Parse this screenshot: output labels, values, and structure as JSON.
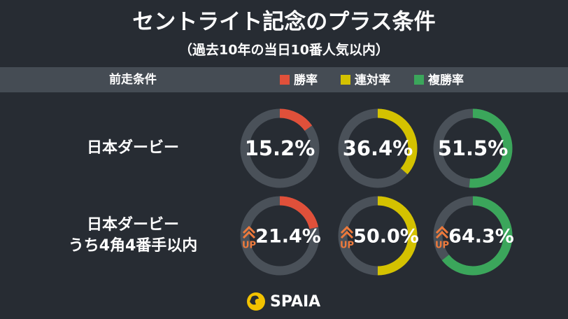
{
  "chart_data": {
    "type": "donut-grid",
    "title": "セントライト記念のプラス条件",
    "subtitle": "（過去10年の当日10番人気以内）",
    "category_header": "前走条件",
    "categories": [
      [
        "日本ダービー"
      ],
      [
        "日本ダービー",
        "うち4角4番手以内"
      ]
    ],
    "badges": [
      null,
      "UP"
    ],
    "ylim": [
      0,
      100
    ],
    "track_color": "#4a5159",
    "series": [
      {
        "name": "勝率",
        "color": "#e0503a",
        "values": [
          15.2,
          21.4
        ],
        "value_labels": [
          "15.2%",
          "21.4%"
        ]
      },
      {
        "name": "連対率",
        "color": "#d4c200",
        "values": [
          36.4,
          50.0
        ],
        "value_labels": [
          "36.4%",
          "50.0%"
        ]
      },
      {
        "name": "複勝率",
        "color": "#3ba65b",
        "values": [
          51.5,
          64.3
        ],
        "value_labels": [
          "51.5%",
          "64.3%"
        ]
      }
    ]
  },
  "logo": "SPAIA"
}
